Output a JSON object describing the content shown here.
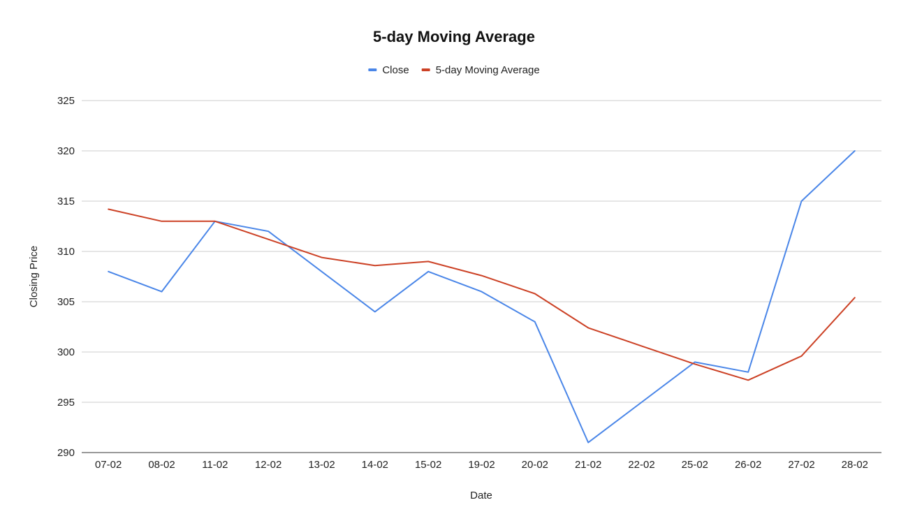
{
  "chart_data": {
    "type": "line",
    "title": "5-day Moving Average",
    "xlabel": "Date",
    "ylabel": "Closing Price",
    "categories": [
      "07-02",
      "08-02",
      "11-02",
      "12-02",
      "13-02",
      "14-02",
      "15-02",
      "19-02",
      "20-02",
      "21-02",
      "22-02",
      "25-02",
      "26-02",
      "27-02",
      "28-02"
    ],
    "yticks": [
      290,
      295,
      300,
      305,
      310,
      315,
      320,
      325
    ],
    "ylim": [
      290,
      325
    ],
    "grid": true,
    "legend_position": "top-center",
    "series": [
      {
        "name": "Close",
        "color": "#4a86e8",
        "values": [
          308,
          306,
          313,
          312,
          308,
          304,
          308,
          306,
          303,
          291,
          295,
          299,
          298,
          315,
          320
        ]
      },
      {
        "name": "5-day Moving Average",
        "color": "#cc4125",
        "values": [
          314.2,
          313.0,
          313.0,
          311.2,
          309.4,
          308.6,
          309.0,
          307.6,
          305.8,
          302.4,
          300.6,
          298.8,
          297.2,
          299.6,
          305.4
        ]
      }
    ]
  }
}
